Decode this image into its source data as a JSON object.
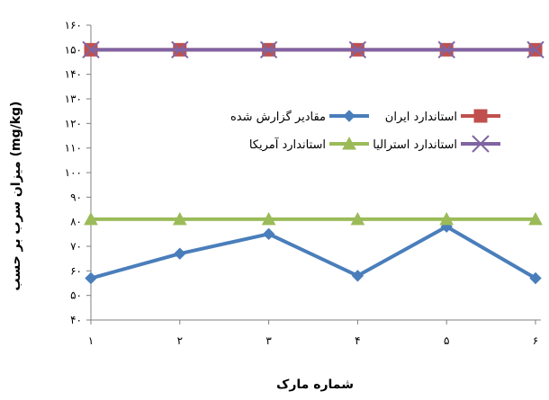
{
  "chart_data": {
    "type": "line",
    "title": "",
    "xlabel": "شماره مارک",
    "ylabel": "میزان سرب بر حسب (mg/kg)",
    "categories": [
      "۱",
      "۲",
      "۳",
      "۴",
      "۵",
      "۶"
    ],
    "ylim": [
      40,
      160
    ],
    "yticks": [
      {
        "value": 40,
        "label": "۴۰"
      },
      {
        "value": 50,
        "label": "۵۰"
      },
      {
        "value": 60,
        "label": "۶۰"
      },
      {
        "value": 70,
        "label": "۷۰"
      },
      {
        "value": 80,
        "label": "۸۰"
      },
      {
        "value": 90,
        "label": "۹۰"
      },
      {
        "value": 100,
        "label": "۱۰۰"
      },
      {
        "value": 110,
        "label": "۱۱۰"
      },
      {
        "value": 120,
        "label": "۱۲۰"
      },
      {
        "value": 130,
        "label": "۱۳۰"
      },
      {
        "value": 140,
        "label": "۱۴۰"
      },
      {
        "value": 150,
        "label": "۱۵۰"
      },
      {
        "value": 160,
        "label": "۱۶۰"
      }
    ],
    "grid": false,
    "legend_position": "inside-top-right",
    "series": [
      {
        "name": "مقادیر گزارش شده",
        "color": "#4a7ebb",
        "marker": "diamond",
        "values": [
          57,
          67,
          75,
          58,
          78,
          57
        ]
      },
      {
        "name": "استاندارد ایران",
        "color": "#c0504d",
        "marker": "square",
        "values": [
          150,
          150,
          150,
          150,
          150,
          150
        ]
      },
      {
        "name": "استاندارد آمریکا",
        "color": "#9bbb59",
        "marker": "triangle",
        "values": [
          81,
          81,
          81,
          81,
          81,
          81
        ]
      },
      {
        "name": "استاندارد استرالیا",
        "color": "#8064a2",
        "marker": "x",
        "values": [
          150,
          150,
          150,
          150,
          150,
          150
        ]
      }
    ]
  }
}
